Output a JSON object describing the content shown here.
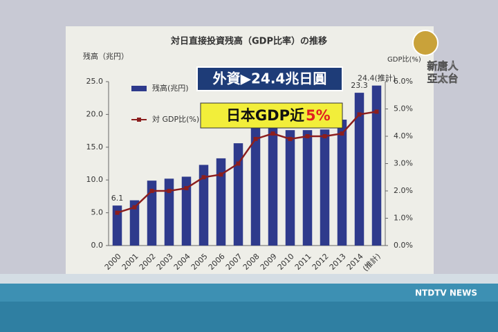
{
  "chart_data": {
    "type": "bar_line",
    "title": "対日直接投資残高（GDP比率）の推移",
    "y_label": "残高（兆円）",
    "y2_label": "GDP比(%)",
    "categories": [
      "2000",
      "2001",
      "2002",
      "2003",
      "2004",
      "2005",
      "2006",
      "2007",
      "2008",
      "2009",
      "2010",
      "2011",
      "2012",
      "2013",
      "2014",
      "(推計)"
    ],
    "series": [
      {
        "name": "残高(兆円)",
        "kind": "bar",
        "color": "#2e3a8c",
        "values": [
          6.1,
          6.9,
          9.9,
          10.2,
          10.5,
          12.3,
          13.3,
          15.6,
          18.4,
          18.4,
          17.6,
          17.6,
          17.7,
          19.2,
          23.3,
          24.4
        ],
        "value_labels": [
          "6.1",
          null,
          null,
          null,
          null,
          null,
          null,
          null,
          null,
          null,
          null,
          null,
          null,
          null,
          "23.3",
          "24.4(推計)"
        ]
      },
      {
        "name": "対 GDP比(%)",
        "kind": "line",
        "axis": "y2",
        "color": "#8b1e1e",
        "values": [
          1.2,
          1.4,
          2.0,
          2.0,
          2.1,
          2.5,
          2.6,
          3.0,
          3.9,
          4.1,
          3.9,
          4.0,
          4.0,
          4.1,
          4.8,
          4.9
        ]
      }
    ],
    "ylim": [
      0,
      25
    ],
    "yticks": [
      {
        "value": 0,
        "label": "0.0"
      },
      {
        "value": 5,
        "label": "5.0"
      },
      {
        "value": 10,
        "label": "10.0"
      },
      {
        "value": 15,
        "label": "15.0"
      },
      {
        "value": 20,
        "label": "20.0"
      },
      {
        "value": 25,
        "label": "25.0"
      }
    ],
    "y2lim": [
      0,
      6
    ],
    "y2ticks": [
      {
        "value": 0,
        "label": "0.0%"
      },
      {
        "value": 1,
        "label": "1.0%"
      },
      {
        "value": 2,
        "label": "2.0%"
      },
      {
        "value": 3,
        "label": "3.0%"
      },
      {
        "value": 4,
        "label": "4.0%"
      },
      {
        "value": 5,
        "label": "5.0%"
      },
      {
        "value": 6,
        "label": "6.0%"
      }
    ]
  },
  "overlay": {
    "headline": "外資▶24.4兆日圓",
    "subhead": "日本GDP近",
    "subhead_highlight": "5%"
  },
  "logo": {
    "line1": "新唐人",
    "line2": "亞太台"
  },
  "footer": "NTDTV NEWS"
}
